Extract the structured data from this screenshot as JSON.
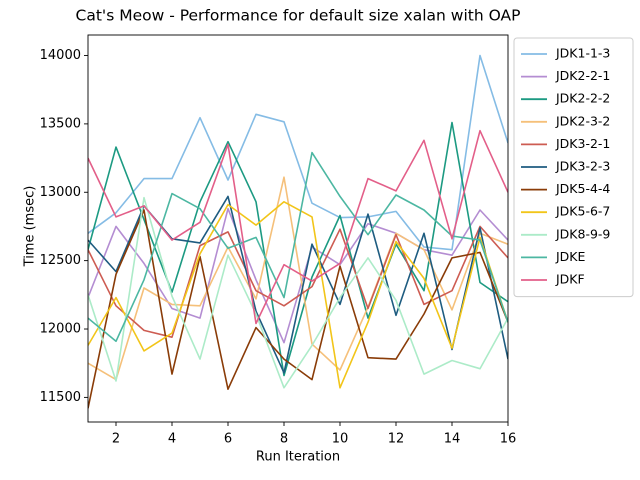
{
  "chart_data": {
    "type": "line",
    "title": "Cat's Meow - Performance for default size xalan with OAP",
    "xlabel": "Run Iteration",
    "ylabel": "Time (msec)",
    "xlim": [
      1,
      16
    ],
    "ylim": [
      11320,
      14150
    ],
    "xticks": [
      2,
      4,
      6,
      8,
      10,
      12,
      14,
      16
    ],
    "yticks": [
      11500,
      12000,
      12500,
      13000,
      13500,
      14000
    ],
    "grid": false,
    "legend_position": "outside-right-top",
    "x": [
      1,
      2,
      3,
      4,
      5,
      6,
      7,
      8,
      9,
      10,
      11,
      12,
      13,
      14,
      15,
      16
    ],
    "series": [
      {
        "name": "JDK1-1-3",
        "color": "#85bce5",
        "values": [
          12700,
          12850,
          13100,
          13100,
          13545,
          13090,
          13570,
          13515,
          12920,
          12815,
          12820,
          12860,
          12600,
          12580,
          14000,
          13360
        ]
      },
      {
        "name": "JDK2-2-1",
        "color": "#b48dd2",
        "values": [
          12230,
          12750,
          12480,
          12150,
          12080,
          12880,
          12360,
          11900,
          12600,
          12470,
          12770,
          12700,
          12580,
          12540,
          12870,
          12650
        ]
      },
      {
        "name": "JDK2-2-2",
        "color": "#1c9a82",
        "values": [
          12580,
          13330,
          12800,
          12270,
          12930,
          13370,
          12930,
          11660,
          12380,
          12830,
          12080,
          12620,
          12280,
          13510,
          12340,
          12200
        ]
      },
      {
        "name": "JDK2-3-2",
        "color": "#f5c07a",
        "values": [
          11750,
          11630,
          12300,
          12180,
          12170,
          12600,
          12220,
          13110,
          11890,
          11700,
          12160,
          12700,
          12580,
          12140,
          12700,
          12620
        ]
      },
      {
        "name": "JDK3-2-1",
        "color": "#cd5c52",
        "values": [
          12580,
          12170,
          11990,
          11940,
          12610,
          12710,
          12280,
          12170,
          12310,
          12730,
          12150,
          12690,
          12180,
          12280,
          12750,
          12520
        ]
      },
      {
        "name": "JDK3-2-3",
        "color": "#1e5c80",
        "values": [
          12650,
          12420,
          12900,
          12660,
          12630,
          12970,
          12130,
          11680,
          12620,
          12180,
          12840,
          12100,
          12700,
          11850,
          12740,
          11780
        ]
      },
      {
        "name": "JDK5-4-4",
        "color": "#8a3c08",
        "values": [
          11420,
          12400,
          12870,
          11670,
          12530,
          11560,
          12010,
          11780,
          11630,
          12460,
          11790,
          11780,
          12110,
          12520,
          12560,
          12050
        ]
      },
      {
        "name": "JDK5-6-7",
        "color": "#f2c519",
        "values": [
          11880,
          12230,
          11840,
          11970,
          12550,
          12910,
          12760,
          12930,
          12820,
          11570,
          12050,
          12640,
          12370,
          11860,
          12670,
          12050
        ]
      },
      {
        "name": "JDK8-9-9",
        "color": "#acebc8",
        "values": [
          12250,
          11620,
          12960,
          12240,
          11780,
          12540,
          12110,
          11570,
          11880,
          12230,
          12520,
          12210,
          11670,
          11770,
          11710,
          12080
        ]
      },
      {
        "name": "JDKE",
        "color": "#4cb7a2",
        "values": [
          12080,
          11910,
          12360,
          12990,
          12880,
          12590,
          12670,
          12230,
          13290,
          12970,
          12690,
          12980,
          12870,
          12680,
          12650,
          12050
        ]
      },
      {
        "name": "JDKF",
        "color": "#e35f89",
        "values": [
          13250,
          12820,
          12900,
          12650,
          12780,
          13350,
          12040,
          12470,
          12350,
          12480,
          13100,
          13010,
          13380,
          12660,
          13450,
          13000
        ]
      }
    ]
  }
}
